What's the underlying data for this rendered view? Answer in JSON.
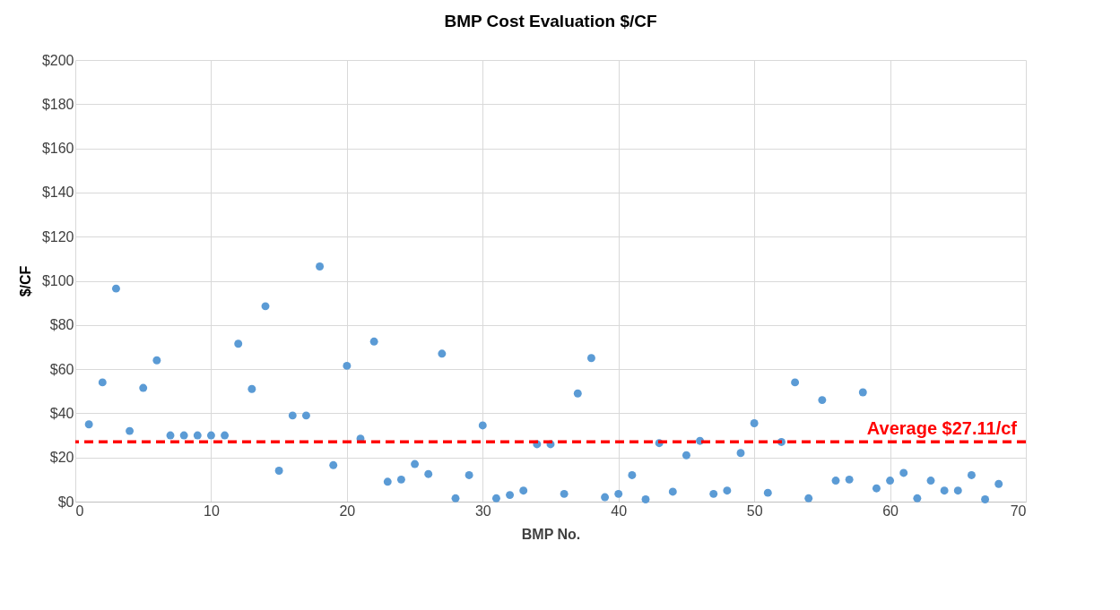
{
  "chart_data": {
    "type": "scatter",
    "title": "BMP Cost Evaluation $/CF",
    "xlabel": "BMP No.",
    "ylabel": "$/CF",
    "x": [
      1,
      2,
      3,
      4,
      5,
      6,
      7,
      8,
      9,
      10,
      11,
      12,
      13,
      14,
      15,
      16,
      17,
      18,
      19,
      20,
      21,
      22,
      23,
      24,
      25,
      26,
      27,
      28,
      29,
      30,
      31,
      32,
      33,
      34,
      35,
      36,
      37,
      38,
      39,
      40,
      41,
      42,
      43,
      44,
      45,
      46,
      47,
      48,
      49,
      50,
      51,
      52,
      53,
      54,
      55,
      56,
      57,
      58,
      59,
      60,
      61,
      62,
      63,
      64,
      65,
      66,
      67,
      68
    ],
    "series": [
      {
        "color": "#5b9bd5",
        "values": [
          35,
          54,
          96.5,
          32,
          51.5,
          64,
          30,
          30,
          30,
          30,
          30,
          71.5,
          51,
          88.5,
          14,
          39,
          39,
          106.5,
          16.5,
          61.5,
          28.5,
          72.5,
          9,
          10,
          17,
          12.5,
          67,
          1.5,
          12,
          34.5,
          1.5,
          3,
          5,
          26,
          26,
          3.5,
          49,
          65,
          2,
          3.5,
          12,
          1,
          26.5,
          4.5,
          21,
          27.5,
          3.5,
          5,
          22,
          35.5,
          4,
          27,
          54,
          1.5,
          46,
          9.5,
          10,
          49.5,
          6,
          9.5,
          13,
          1.5,
          9.5,
          5,
          5,
          12,
          1,
          8
        ]
      }
    ],
    "xlim": [
      0,
      70
    ],
    "xticks": [
      0,
      10,
      20,
      30,
      40,
      50,
      60,
      70
    ],
    "ylim": [
      0,
      200
    ],
    "yticks": [
      {
        "value": 0,
        "label": "$0"
      },
      {
        "value": 20,
        "label": "$20"
      },
      {
        "value": 40,
        "label": "$40"
      },
      {
        "value": 60,
        "label": "$60"
      },
      {
        "value": 80,
        "label": "$80"
      },
      {
        "value": 100,
        "label": "$100"
      },
      {
        "value": 120,
        "label": "$120"
      },
      {
        "value": 140,
        "label": "$140"
      },
      {
        "value": 160,
        "label": "$160"
      },
      {
        "value": 180,
        "label": "$180"
      },
      {
        "value": 200,
        "label": "$200"
      }
    ],
    "ref_lines": [
      {
        "axis": "y",
        "value": 27.11,
        "label": "Average $27.11/cf",
        "color": "#ff0000",
        "line_style": "dashed"
      }
    ],
    "grid": true,
    "marker": "circle"
  }
}
